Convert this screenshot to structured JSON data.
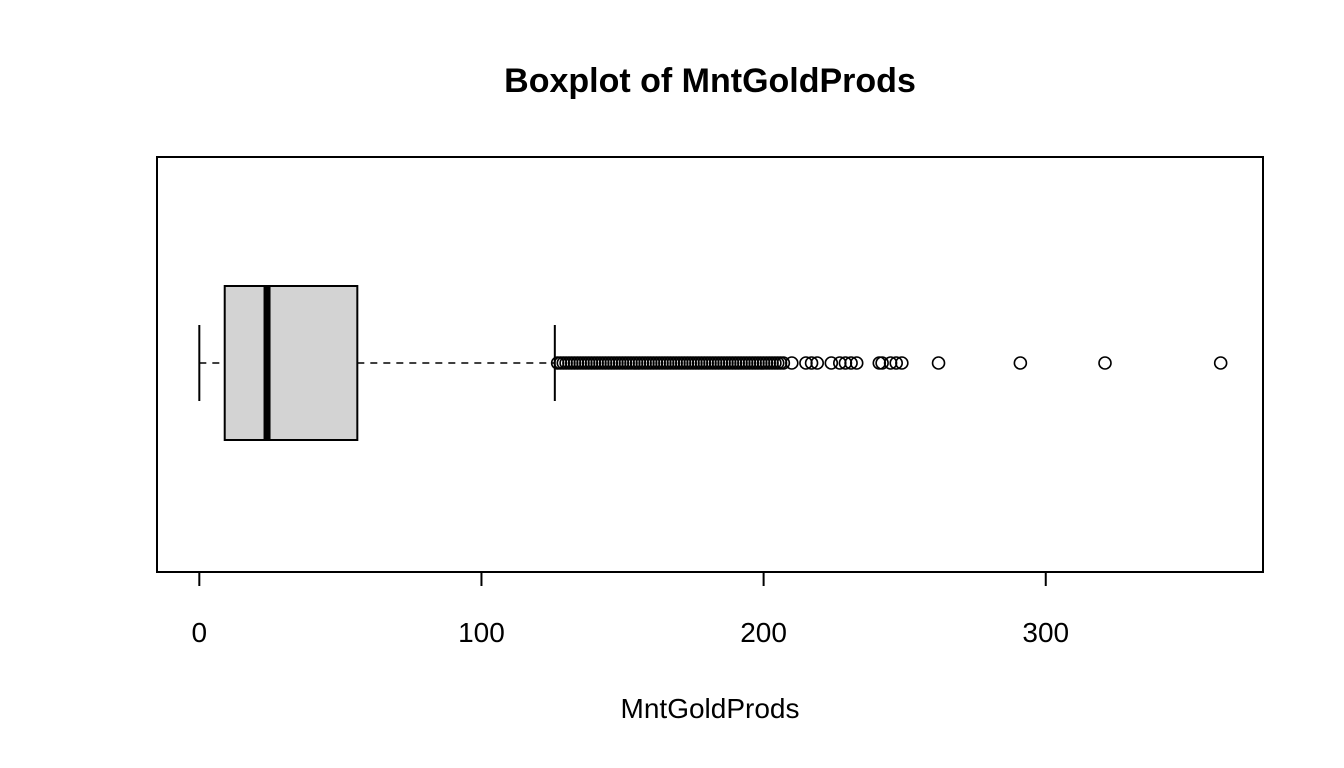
{
  "chart_data": {
    "type": "boxplot",
    "orientation": "horizontal",
    "title": "Boxplot of MntGoldProds",
    "xlabel": "MntGoldProds",
    "ylabel": "",
    "xlim": [
      -15,
      377
    ],
    "xticks": [
      0,
      100,
      200,
      300
    ],
    "xtick_labels": [
      "0",
      "100",
      "200",
      "300"
    ],
    "grid": false,
    "colors": {
      "box_fill": "#d3d3d3",
      "stroke": "#000000"
    },
    "box": {
      "min": 0,
      "q1": 9,
      "median": 24,
      "q3": 56,
      "whisker_low": 0,
      "whisker_high": 126
    },
    "outliers": [
      127,
      128,
      129,
      130,
      131,
      132,
      133,
      134,
      135,
      136,
      137,
      138,
      139,
      140,
      141,
      142,
      143,
      144,
      145,
      146,
      147,
      148,
      149,
      150,
      151,
      152,
      153,
      154,
      155,
      156,
      157,
      158,
      159,
      160,
      161,
      162,
      163,
      164,
      165,
      166,
      167,
      168,
      169,
      170,
      171,
      172,
      173,
      174,
      175,
      176,
      177,
      178,
      179,
      180,
      181,
      182,
      183,
      184,
      185,
      186,
      187,
      188,
      189,
      190,
      191,
      192,
      193,
      194,
      195,
      196,
      197,
      198,
      199,
      200,
      201,
      202,
      203,
      204,
      205,
      206,
      207,
      210,
      215,
      217,
      219,
      224,
      227,
      229,
      231,
      233,
      241,
      242,
      245,
      247,
      249,
      262,
      291,
      321,
      362
    ]
  }
}
